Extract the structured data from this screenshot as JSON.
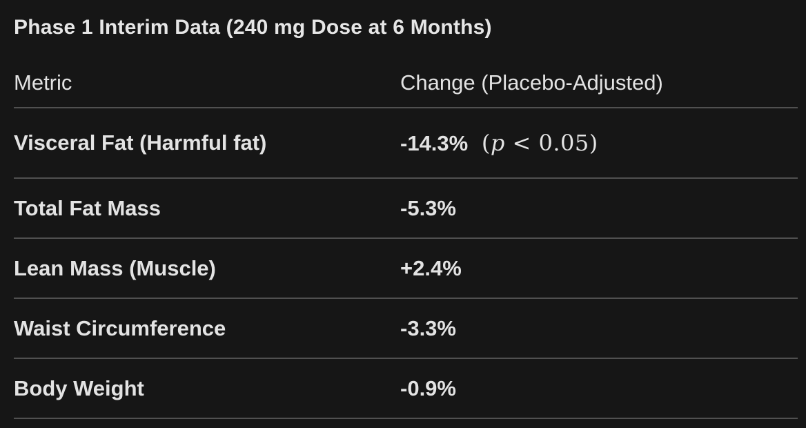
{
  "title": "Phase 1 Interim Data (240 mg Dose at 6 Months)",
  "header": {
    "metric": "Metric",
    "change": "Change (Placebo-Adjusted)"
  },
  "rows": [
    {
      "metric": "Visceral Fat (Harmful fat)",
      "value": "-14.3%",
      "math": {
        "open": " (",
        "var": "p",
        "rest": " < 0.05)"
      }
    },
    {
      "metric": "Total Fat Mass",
      "value": "-5.3%"
    },
    {
      "metric": "Lean Mass (Muscle)",
      "value": "+2.4%"
    },
    {
      "metric": "Waist Circumference",
      "value": "-3.3%"
    },
    {
      "metric": "Body Weight",
      "value": "-0.9%"
    }
  ],
  "colors": {
    "background": "#161616",
    "text": "#e3e3e3",
    "divider": "#505050"
  },
  "chart_data": {
    "type": "table",
    "title": "Phase 1 Interim Data (240 mg Dose at 6 Months)",
    "columns": [
      "Metric",
      "Change (Placebo-Adjusted)"
    ],
    "rows": [
      [
        "Visceral Fat (Harmful fat)",
        "-14.3% (p < 0.05)"
      ],
      [
        "Total Fat Mass",
        "-5.3%"
      ],
      [
        "Lean Mass (Muscle)",
        "+2.4%"
      ],
      [
        "Waist Circumference",
        "-3.3%"
      ],
      [
        "Body Weight",
        "-0.9%"
      ]
    ],
    "values_numeric_pct": [
      -14.3,
      -5.3,
      2.4,
      -3.3,
      -0.9
    ],
    "significance_note": "p < 0.05 applies to Visceral Fat row"
  }
}
